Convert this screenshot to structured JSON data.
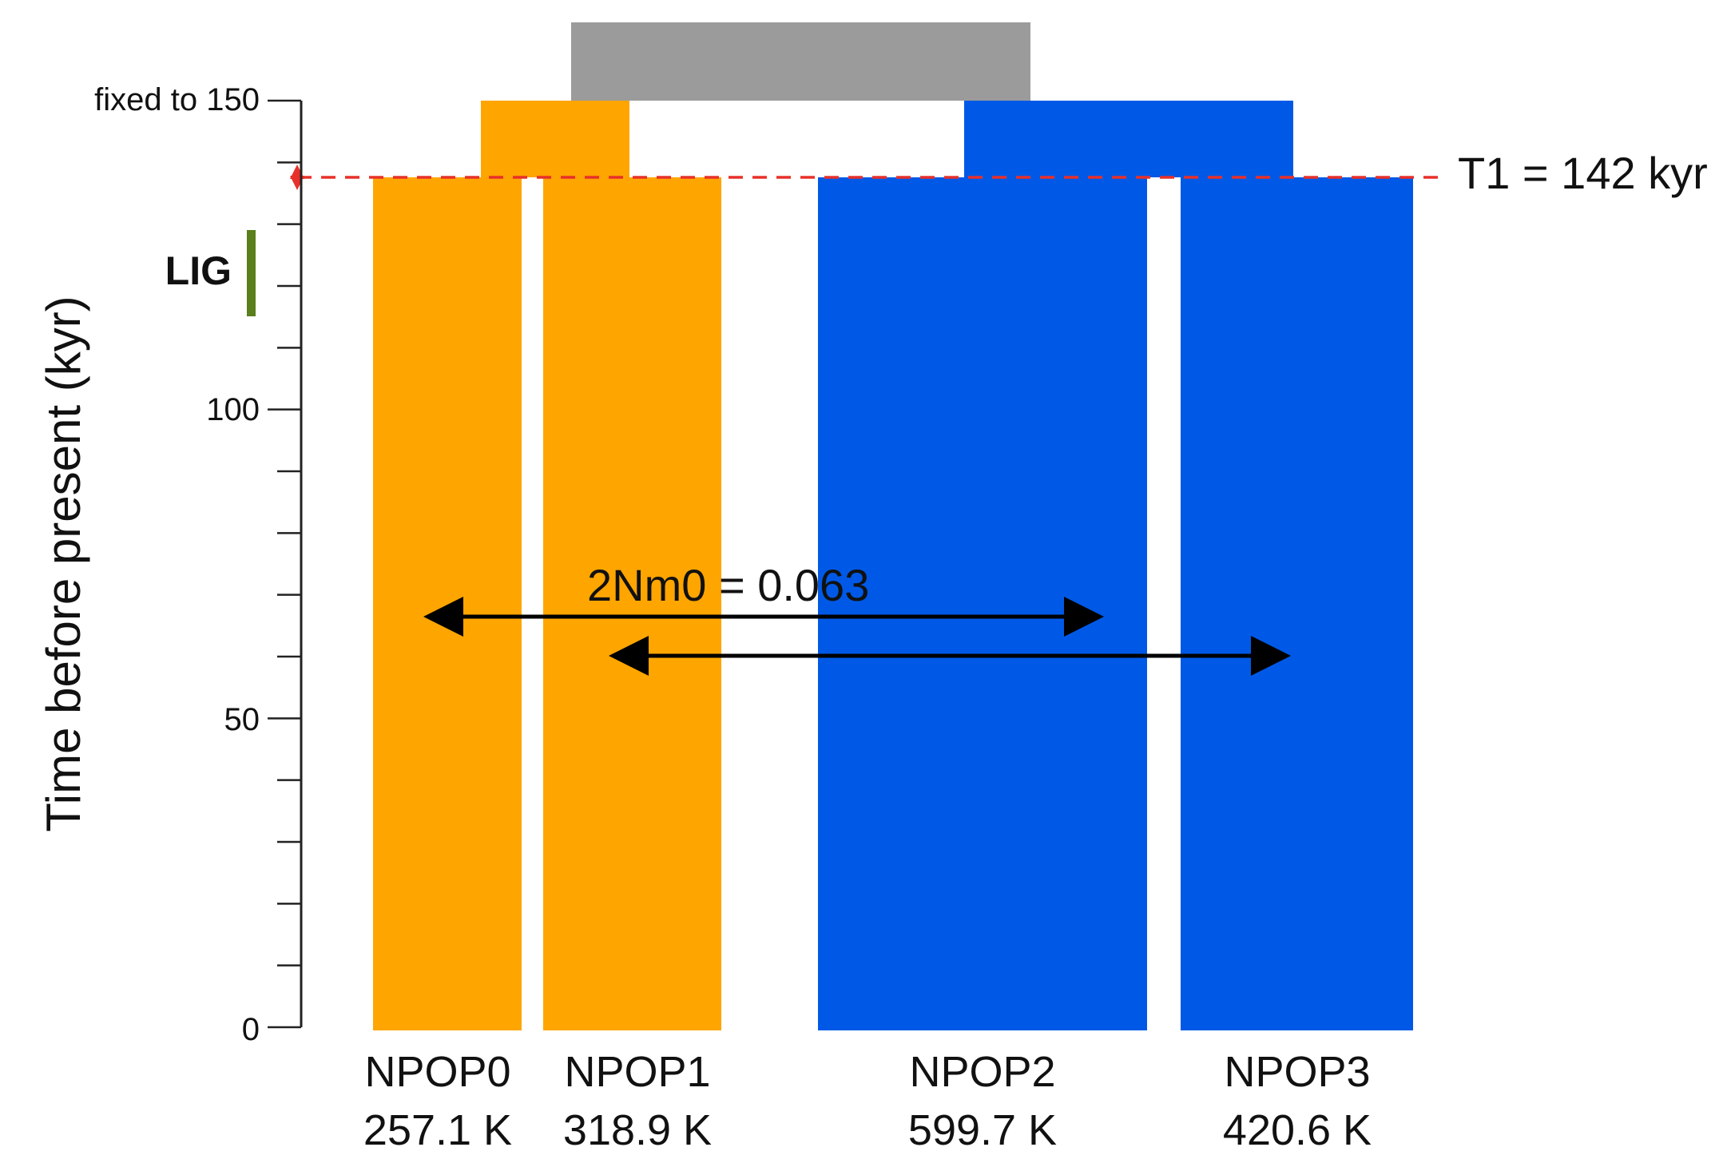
{
  "axis": {
    "title": "Time before present (kyr)",
    "tick_labels": {
      "t150": "fixed to 150",
      "t100": "100",
      "t50": "50",
      "t0": "0"
    },
    "range_kyr": [
      0,
      150
    ]
  },
  "lig": {
    "label": "LIG",
    "color": "#5a7f1c",
    "range_kyr": [
      115,
      129
    ]
  },
  "split_line": {
    "label": "T1 = 142 kyr",
    "value_kyr": 142,
    "color": "#e8302a"
  },
  "migration": {
    "label": "2Nm0 = 0.063"
  },
  "colors": {
    "orange": "#ffa500",
    "blue": "#0059e6",
    "ancestral": "#9b9b9b"
  },
  "populations": [
    {
      "name": "NPOP0",
      "size": "257.1 K",
      "group": "orange"
    },
    {
      "name": "NPOP1",
      "size": "318.9 K",
      "group": "orange"
    },
    {
      "name": "NPOP2",
      "size": "599.7 K",
      "group": "blue"
    },
    {
      "name": "NPOP3",
      "size": "420.6 K",
      "group": "blue"
    }
  ]
}
